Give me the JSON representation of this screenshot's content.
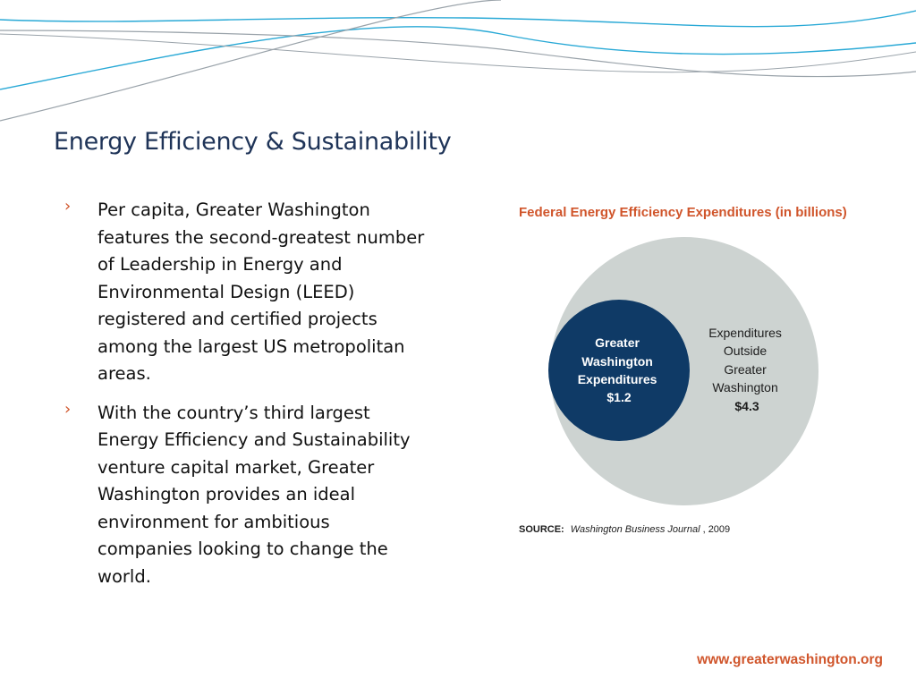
{
  "slide": {
    "title": "Energy Efficiency & Sustainability",
    "bullet_marker": "›",
    "bullets": [
      {
        "lines": [
          "Per capita, Greater Washington",
          "features the second-greatest number",
          "of Leadership in Energy and",
          "Environmental Design (LEED)",
          "registered and certified projects",
          "among the largest US metropolitan",
          "areas."
        ]
      },
      {
        "lines": [
          "With the country’s third largest",
          "Energy Efficiency and Sustainability",
          "venture capital market, Greater",
          "Washington provides an ideal",
          "environment for ambitious",
          "companies looking to change the",
          "world."
        ]
      }
    ],
    "footer_url": "www.greaterwashington.org"
  },
  "colors": {
    "title": "#1f3458",
    "accent": "#d0552b",
    "wave_blue": "#29a9d6",
    "wave_gray": "#9aa3aa",
    "outer_circle": "#cdd3d1",
    "inner_circle": "#0f3a66"
  },
  "chart_data": {
    "type": "nested-circle",
    "title": "Federal Energy Efficiency Expenditures (in billions)",
    "unit": "billions",
    "values": [
      {
        "label_lines": [
          "Greater",
          "Washington",
          "Expenditures",
          "$1.2"
        ],
        "value": 1.2,
        "color": "#0f3a66"
      },
      {
        "label_lines": [
          "Expenditures",
          "Outside",
          "Greater",
          "Washington",
          "$4.3"
        ],
        "value": 4.3,
        "color": "#cdd3d1"
      }
    ],
    "source_label": "SOURCE:",
    "source_italic": "Washington Business Journal",
    "source_year": ", 2009"
  }
}
